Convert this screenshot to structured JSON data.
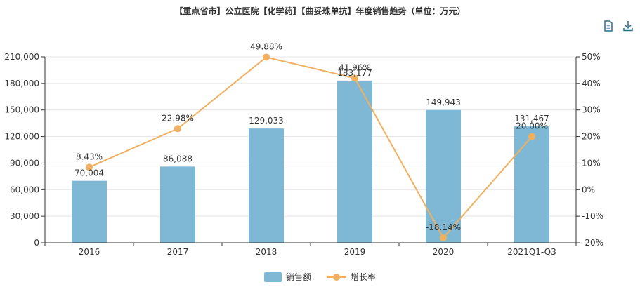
{
  "title": "【重点省市】公立医院【化学药】【曲妥珠单抗】年度销售趋势（单位：万元）",
  "toolbar": {
    "data_view_icon": "document-icon",
    "download_icon": "download-icon"
  },
  "colors": {
    "bar": "#7fb8d4",
    "line": "#f0b060",
    "axis": "#333333",
    "grid": "#e4e4e4"
  },
  "chart_data": {
    "type": "bar+line",
    "title": "【重点省市】公立医院【化学药】【曲妥珠单抗】年度销售趋势（单位：万元）",
    "categories": [
      "2016",
      "2017",
      "2018",
      "2019",
      "2020",
      "2021Q1-Q3"
    ],
    "series": [
      {
        "name": "销售额",
        "type": "bar",
        "axis": "left",
        "values": [
          70004,
          86088,
          129033,
          183177,
          149943,
          131467
        ],
        "labels": [
          "70,004",
          "86,088",
          "129,033",
          "183,177",
          "149,943",
          "131,467"
        ]
      },
      {
        "name": "增长率",
        "type": "line",
        "axis": "right",
        "values": [
          8.43,
          22.98,
          49.88,
          41.96,
          -18.14,
          20.0
        ],
        "labels": [
          "8.43%",
          "22.98%",
          "49.88%",
          "41.96%",
          "-18.14%",
          "20.00%"
        ]
      }
    ],
    "y_left": {
      "min": 0,
      "max": 210000,
      "ticks": [
        "0",
        "30,000",
        "60,000",
        "90,000",
        "120,000",
        "150,000",
        "180,000",
        "210,000"
      ]
    },
    "y_right": {
      "min": -20,
      "max": 50,
      "ticks": [
        "-20%",
        "-10%",
        "0%",
        "10%",
        "20%",
        "30%",
        "40%",
        "50%"
      ]
    },
    "grid": true,
    "legend_position": "bottom-center"
  }
}
